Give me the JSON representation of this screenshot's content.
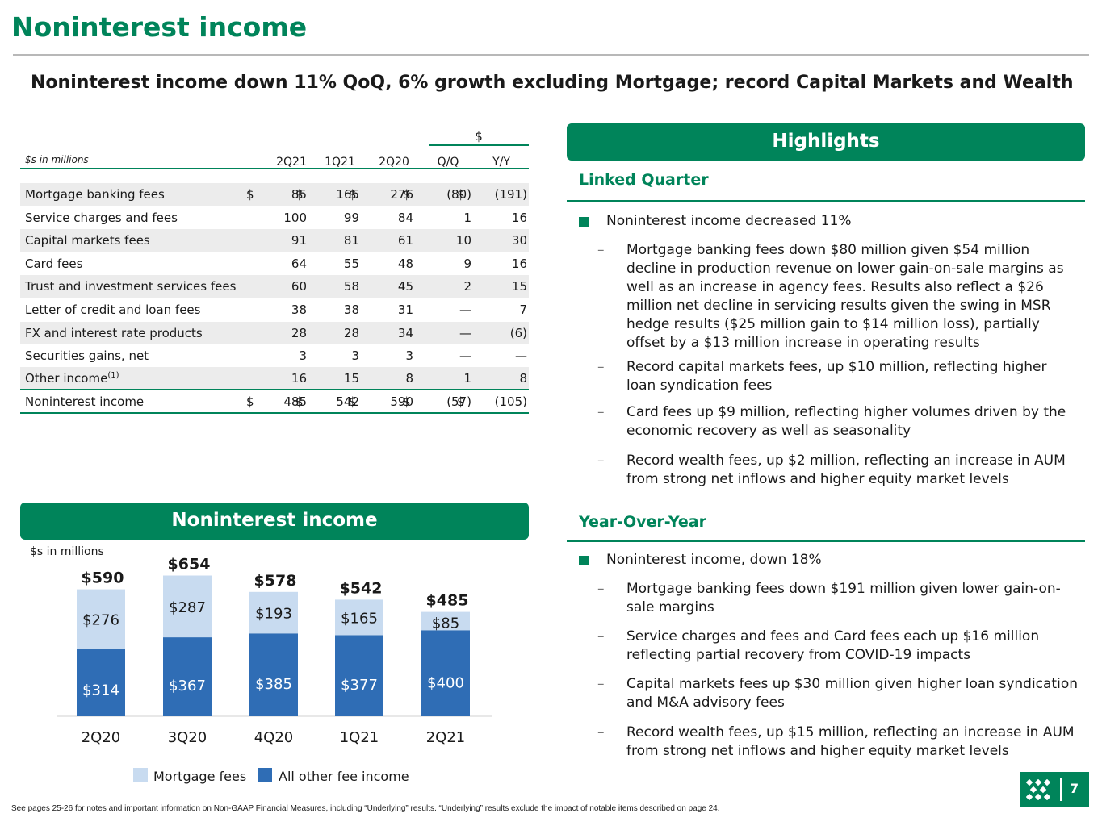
{
  "title": "Noninterest income",
  "subtitle": "Noninterest income down 11% QoQ, 6% growth excluding Mortgage; record Capital Markets and Wealth",
  "table": {
    "group_header": "$",
    "units": "$s in millions",
    "columns": [
      "2Q21",
      "1Q21",
      "2Q20",
      "Q/Q",
      "Y/Y"
    ],
    "rows": [
      {
        "label": "Mortgage banking fees",
        "values": [
          "85",
          "165",
          "276",
          "(80)",
          "(191)"
        ],
        "dollar": true
      },
      {
        "label": "Service charges and fees",
        "values": [
          "100",
          "99",
          "84",
          "1",
          "16"
        ]
      },
      {
        "label": "Capital markets fees",
        "values": [
          "91",
          "81",
          "61",
          "10",
          "30"
        ]
      },
      {
        "label": "Card fees",
        "values": [
          "64",
          "55",
          "48",
          "9",
          "16"
        ]
      },
      {
        "label": "Trust and investment services fees",
        "values": [
          "60",
          "58",
          "45",
          "2",
          "15"
        ]
      },
      {
        "label": "Letter of credit and loan fees",
        "values": [
          "38",
          "38",
          "31",
          "—",
          "7"
        ]
      },
      {
        "label": "FX and interest rate products",
        "values": [
          "28",
          "28",
          "34",
          "—",
          "(6)"
        ]
      },
      {
        "label": "Securities gains, net",
        "values": [
          "3",
          "3",
          "3",
          "—",
          "—"
        ]
      },
      {
        "label": "Other income",
        "sup": "(1)",
        "values": [
          "16",
          "15",
          "8",
          "1",
          "8"
        ]
      },
      {
        "label": "Noninterest income",
        "values": [
          "485",
          "542",
          "590",
          "(57)",
          "(105)"
        ],
        "dollar": true
      }
    ],
    "dollar_sign": "$"
  },
  "chart_banner": "Noninterest income",
  "chart_data": {
    "type": "bar",
    "stacked": true,
    "units_label": "$s in millions",
    "categories": [
      "2Q20",
      "3Q20",
      "4Q20",
      "1Q21",
      "2Q21"
    ],
    "series": [
      {
        "name": "All other fee income",
        "values": [
          314,
          367,
          385,
          377,
          400
        ],
        "labels": [
          "$314",
          "$367",
          "$385",
          "$377",
          "$400"
        ],
        "color": "#2f6db5"
      },
      {
        "name": "Mortgage fees",
        "values": [
          276,
          287,
          193,
          165,
          85
        ],
        "labels": [
          "$276",
          "$287",
          "$193",
          "$165",
          "$85"
        ],
        "color": "#c8dbf0"
      }
    ],
    "totals": [
      "$590",
      "$654",
      "$578",
      "$542",
      "$485"
    ],
    "legend": [
      {
        "label": "Mortgage fees",
        "color": "#c8dbf0"
      },
      {
        "label": "All other fee income",
        "color": "#2f6db5"
      }
    ],
    "legend_position": "bottom"
  },
  "highlights": {
    "banner": "Highlights",
    "linked": {
      "title": "Linked Quarter",
      "bullet": "Noninterest income decreased 11%",
      "subs": [
        "Mortgage banking fees down $80 million given $54 million decline in production revenue on lower gain-on-sale margins as well as an increase in agency fees. Results also reflect a $26 million net decline in servicing results given the swing in MSR hedge results ($25 million gain to $14 million loss), partially offset by a $13 million increase in operating results",
        "Record capital markets fees, up $10 million, reflecting higher loan syndication fees",
        "Card fees up $9 million, reflecting higher volumes driven by the economic recovery as well as seasonality",
        "Record wealth fees, up $2 million, reflecting an increase in AUM from strong net inflows and higher equity market levels"
      ]
    },
    "yoy": {
      "title": "Year-Over-Year",
      "bullet": "Noninterest income, down 18%",
      "subs": [
        "Mortgage banking fees down $191 million given lower gain-on-sale margins",
        "Service charges and fees and Card fees each up $16 million reflecting partial recovery from COVID-19 impacts",
        "Capital markets fees up $30 million given higher loan syndication and M&A advisory fees",
        "Record wealth fees, up $15 million, reflecting an increase in AUM from strong net inflows and higher equity market levels"
      ]
    },
    "dash": "–"
  },
  "footnote": "See pages 25-26 for notes and important information on Non-GAAP Financial Measures, including “Underlying” results. “Underlying” results exclude the impact of notable items described on page 24.",
  "page_number": "7"
}
